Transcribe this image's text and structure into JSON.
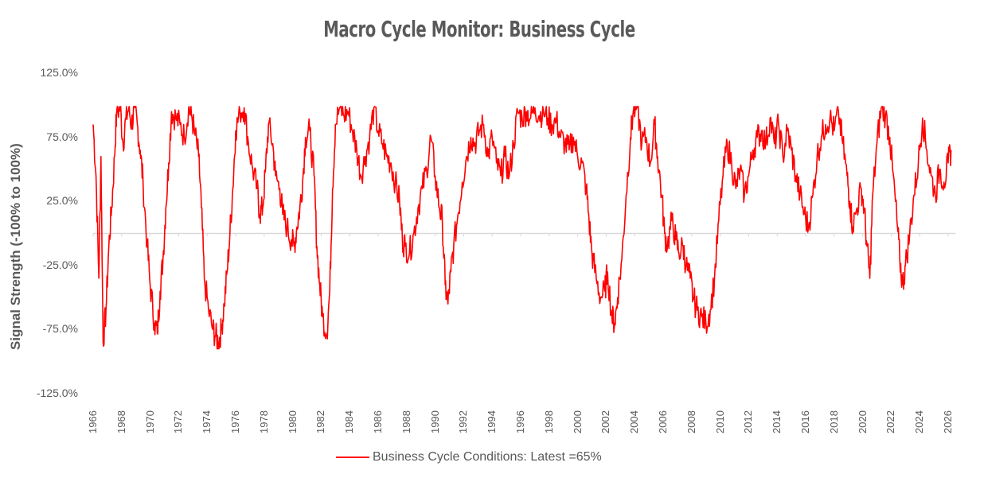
{
  "chart_data": {
    "type": "line",
    "title": "Macro Cycle Monitor: Business Cycle",
    "ylabel": "Signal Strength (-100% to 100%)",
    "xlabel": "",
    "ylim": [
      -1.25,
      1.25
    ],
    "xlim": [
      1966,
      2026.5
    ],
    "yticks": [
      "125.0%",
      "75.0%",
      "25.0%",
      "-25.0%",
      "-75.0%",
      "-125.0%"
    ],
    "ytick_values": [
      1.25,
      0.75,
      0.25,
      -0.25,
      -0.75,
      -1.25
    ],
    "xticks": [
      "1966",
      "1968",
      "1970",
      "1972",
      "1974",
      "1976",
      "1978",
      "1980",
      "1982",
      "1984",
      "1986",
      "1988",
      "1990",
      "1992",
      "1994",
      "1996",
      "1998",
      "2000",
      "2002",
      "2004",
      "2006",
      "2008",
      "2010",
      "2012",
      "2014",
      "2016",
      "2018",
      "2020",
      "2022",
      "2024",
      "2026"
    ],
    "zero_line": true,
    "series": [
      {
        "name": "Business Cycle Conditions: Latest =65%",
        "color": "#ff0000",
        "points": [
          [
            1966.0,
            0.85
          ],
          [
            1966.2,
            0.45
          ],
          [
            1966.4,
            -0.35
          ],
          [
            1966.55,
            0.6
          ],
          [
            1966.7,
            -0.85
          ],
          [
            1966.9,
            -0.6
          ],
          [
            1967.1,
            -0.1
          ],
          [
            1967.3,
            0.2
          ],
          [
            1967.5,
            0.6
          ],
          [
            1967.65,
            0.95
          ],
          [
            1967.9,
            0.98
          ],
          [
            1968.1,
            0.7
          ],
          [
            1968.3,
            0.9
          ],
          [
            1968.5,
            0.98
          ],
          [
            1968.7,
            0.85
          ],
          [
            1968.9,
            0.98
          ],
          [
            1969.1,
            0.85
          ],
          [
            1969.3,
            0.65
          ],
          [
            1969.5,
            0.4
          ],
          [
            1969.8,
            -0.1
          ],
          [
            1970.0,
            -0.4
          ],
          [
            1970.3,
            -0.7
          ],
          [
            1970.5,
            -0.78
          ],
          [
            1970.7,
            -0.45
          ],
          [
            1970.9,
            -0.2
          ],
          [
            1971.1,
            0.2
          ],
          [
            1971.3,
            0.55
          ],
          [
            1971.5,
            0.95
          ],
          [
            1971.8,
            0.9
          ],
          [
            1972.1,
            0.85
          ],
          [
            1972.4,
            0.75
          ],
          [
            1972.7,
            0.98
          ],
          [
            1972.9,
            0.92
          ],
          [
            1973.1,
            0.8
          ],
          [
            1973.4,
            0.6
          ],
          [
            1973.6,
            0.2
          ],
          [
            1973.8,
            -0.35
          ],
          [
            1974.1,
            -0.6
          ],
          [
            1974.4,
            -0.75
          ],
          [
            1974.6,
            -0.8
          ],
          [
            1974.8,
            -0.85
          ],
          [
            1975.0,
            -0.75
          ],
          [
            1975.2,
            -0.55
          ],
          [
            1975.4,
            -0.3
          ],
          [
            1975.6,
            0.0
          ],
          [
            1975.8,
            0.35
          ],
          [
            1976.0,
            0.8
          ],
          [
            1976.3,
            0.95
          ],
          [
            1976.6,
            0.98
          ],
          [
            1976.9,
            0.7
          ],
          [
            1977.2,
            0.5
          ],
          [
            1977.5,
            0.35
          ],
          [
            1977.7,
            0.15
          ],
          [
            1977.9,
            0.2
          ],
          [
            1978.1,
            0.5
          ],
          [
            1978.3,
            0.85
          ],
          [
            1978.6,
            0.7
          ],
          [
            1978.8,
            0.45
          ],
          [
            1979.1,
            0.35
          ],
          [
            1979.3,
            0.15
          ],
          [
            1979.6,
            0.05
          ],
          [
            1979.9,
            -0.05
          ],
          [
            1980.1,
            -0.1
          ],
          [
            1980.3,
            0.05
          ],
          [
            1980.5,
            0.2
          ],
          [
            1980.7,
            0.4
          ],
          [
            1980.9,
            0.75
          ],
          [
            1981.2,
            0.8
          ],
          [
            1981.5,
            0.45
          ],
          [
            1981.7,
            -0.1
          ],
          [
            1981.9,
            -0.4
          ],
          [
            1982.1,
            -0.65
          ],
          [
            1982.4,
            -0.78
          ],
          [
            1982.6,
            -0.45
          ],
          [
            1982.8,
            0.35
          ],
          [
            1983.0,
            0.85
          ],
          [
            1983.3,
            0.98
          ],
          [
            1983.6,
            0.92
          ],
          [
            1983.9,
            0.95
          ],
          [
            1984.2,
            0.8
          ],
          [
            1984.5,
            0.65
          ],
          [
            1984.8,
            0.45
          ],
          [
            1985.1,
            0.6
          ],
          [
            1985.4,
            0.75
          ],
          [
            1985.7,
            0.98
          ],
          [
            1986.0,
            0.8
          ],
          [
            1986.3,
            0.7
          ],
          [
            1986.6,
            0.6
          ],
          [
            1986.9,
            0.55
          ],
          [
            1987.2,
            0.4
          ],
          [
            1987.5,
            0.25
          ],
          [
            1987.7,
            -0.05
          ],
          [
            1987.9,
            -0.1
          ],
          [
            1988.2,
            -0.15
          ],
          [
            1988.5,
            0.0
          ],
          [
            1988.8,
            0.2
          ],
          [
            1989.1,
            0.35
          ],
          [
            1989.4,
            0.5
          ],
          [
            1989.7,
            0.75
          ],
          [
            1990.0,
            0.45
          ],
          [
            1990.3,
            0.2
          ],
          [
            1990.5,
            0.1
          ],
          [
            1990.7,
            -0.4
          ],
          [
            1990.9,
            -0.55
          ],
          [
            1991.1,
            -0.3
          ],
          [
            1991.3,
            -0.1
          ],
          [
            1991.6,
            0.15
          ],
          [
            1991.9,
            0.4
          ],
          [
            1992.2,
            0.6
          ],
          [
            1992.5,
            0.75
          ],
          [
            1992.8,
            0.7
          ],
          [
            1993.1,
            0.8
          ],
          [
            1993.4,
            0.85
          ],
          [
            1993.7,
            0.6
          ],
          [
            1994.0,
            0.75
          ],
          [
            1994.3,
            0.55
          ],
          [
            1994.6,
            0.45
          ],
          [
            1994.9,
            0.6
          ],
          [
            1995.2,
            0.45
          ],
          [
            1995.5,
            0.7
          ],
          [
            1995.8,
            0.95
          ],
          [
            1996.1,
            0.9
          ],
          [
            1996.4,
            0.95
          ],
          [
            1996.7,
            0.9
          ],
          [
            1997.0,
            0.98
          ],
          [
            1997.3,
            0.92
          ],
          [
            1997.6,
            0.95
          ],
          [
            1997.9,
            0.9
          ],
          [
            1998.2,
            0.85
          ],
          [
            1998.5,
            0.88
          ],
          [
            1998.8,
            0.75
          ],
          [
            1999.1,
            0.7
          ],
          [
            1999.4,
            0.65
          ],
          [
            1999.7,
            0.75
          ],
          [
            2000.0,
            0.6
          ],
          [
            2000.3,
            0.55
          ],
          [
            2000.6,
            0.35
          ],
          [
            2000.8,
            0.1
          ],
          [
            2001.0,
            -0.15
          ],
          [
            2001.3,
            -0.35
          ],
          [
            2001.6,
            -0.5
          ],
          [
            2001.9,
            -0.45
          ],
          [
            2002.1,
            -0.3
          ],
          [
            2002.4,
            -0.65
          ],
          [
            2002.6,
            -0.7
          ],
          [
            2002.8,
            -0.5
          ],
          [
            2003.1,
            -0.2
          ],
          [
            2003.4,
            0.3
          ],
          [
            2003.7,
            0.75
          ],
          [
            2003.9,
            0.95
          ],
          [
            2004.2,
            0.98
          ],
          [
            2004.5,
            0.7
          ],
          [
            2004.8,
            0.75
          ],
          [
            2005.1,
            0.55
          ],
          [
            2005.4,
            0.85
          ],
          [
            2005.6,
            0.6
          ],
          [
            2005.9,
            0.3
          ],
          [
            2006.1,
            0.0
          ],
          [
            2006.3,
            -0.1
          ],
          [
            2006.6,
            0.1
          ],
          [
            2006.9,
            -0.05
          ],
          [
            2007.1,
            -0.15
          ],
          [
            2007.4,
            -0.1
          ],
          [
            2007.6,
            -0.25
          ],
          [
            2007.9,
            -0.35
          ],
          [
            2008.1,
            -0.5
          ],
          [
            2008.4,
            -0.6
          ],
          [
            2008.7,
            -0.65
          ],
          [
            2009.0,
            -0.7
          ],
          [
            2009.3,
            -0.6
          ],
          [
            2009.6,
            -0.35
          ],
          [
            2009.9,
            0.1
          ],
          [
            2010.2,
            0.45
          ],
          [
            2010.5,
            0.7
          ],
          [
            2010.8,
            0.55
          ],
          [
            2011.1,
            0.35
          ],
          [
            2011.4,
            0.5
          ],
          [
            2011.7,
            0.3
          ],
          [
            2012.0,
            0.45
          ],
          [
            2012.3,
            0.65
          ],
          [
            2012.6,
            0.75
          ],
          [
            2012.9,
            0.8
          ],
          [
            2013.2,
            0.7
          ],
          [
            2013.5,
            0.9
          ],
          [
            2013.8,
            0.7
          ],
          [
            2014.1,
            0.85
          ],
          [
            2014.4,
            0.6
          ],
          [
            2014.7,
            0.8
          ],
          [
            2015.0,
            0.65
          ],
          [
            2015.3,
            0.45
          ],
          [
            2015.6,
            0.3
          ],
          [
            2015.9,
            0.15
          ],
          [
            2016.2,
            0.05
          ],
          [
            2016.5,
            0.3
          ],
          [
            2016.8,
            0.6
          ],
          [
            2017.1,
            0.75
          ],
          [
            2017.4,
            0.85
          ],
          [
            2017.7,
            0.9
          ],
          [
            2018.0,
            0.8
          ],
          [
            2018.3,
            0.95
          ],
          [
            2018.6,
            0.7
          ],
          [
            2018.9,
            0.45
          ],
          [
            2019.1,
            0.25
          ],
          [
            2019.3,
            0.05
          ],
          [
            2019.6,
            0.2
          ],
          [
            2019.9,
            0.35
          ],
          [
            2020.1,
            0.2
          ],
          [
            2020.3,
            -0.1
          ],
          [
            2020.5,
            -0.35
          ],
          [
            2020.7,
            0.3
          ],
          [
            2021.0,
            0.7
          ],
          [
            2021.3,
            0.98
          ],
          [
            2021.6,
            0.92
          ],
          [
            2021.9,
            0.75
          ],
          [
            2022.1,
            0.5
          ],
          [
            2022.4,
            0.1
          ],
          [
            2022.6,
            -0.2
          ],
          [
            2022.8,
            -0.4
          ],
          [
            2023.0,
            -0.25
          ],
          [
            2023.3,
            0.0
          ],
          [
            2023.6,
            0.3
          ],
          [
            2023.9,
            0.55
          ],
          [
            2024.2,
            0.9
          ],
          [
            2024.5,
            0.65
          ],
          [
            2024.8,
            0.45
          ],
          [
            2025.1,
            0.3
          ],
          [
            2025.4,
            0.5
          ],
          [
            2025.7,
            0.4
          ],
          [
            2026.0,
            0.55
          ],
          [
            2026.2,
            0.65
          ]
        ]
      }
    ]
  },
  "legend": {
    "label": "Business Cycle Conditions: Latest =65%"
  }
}
